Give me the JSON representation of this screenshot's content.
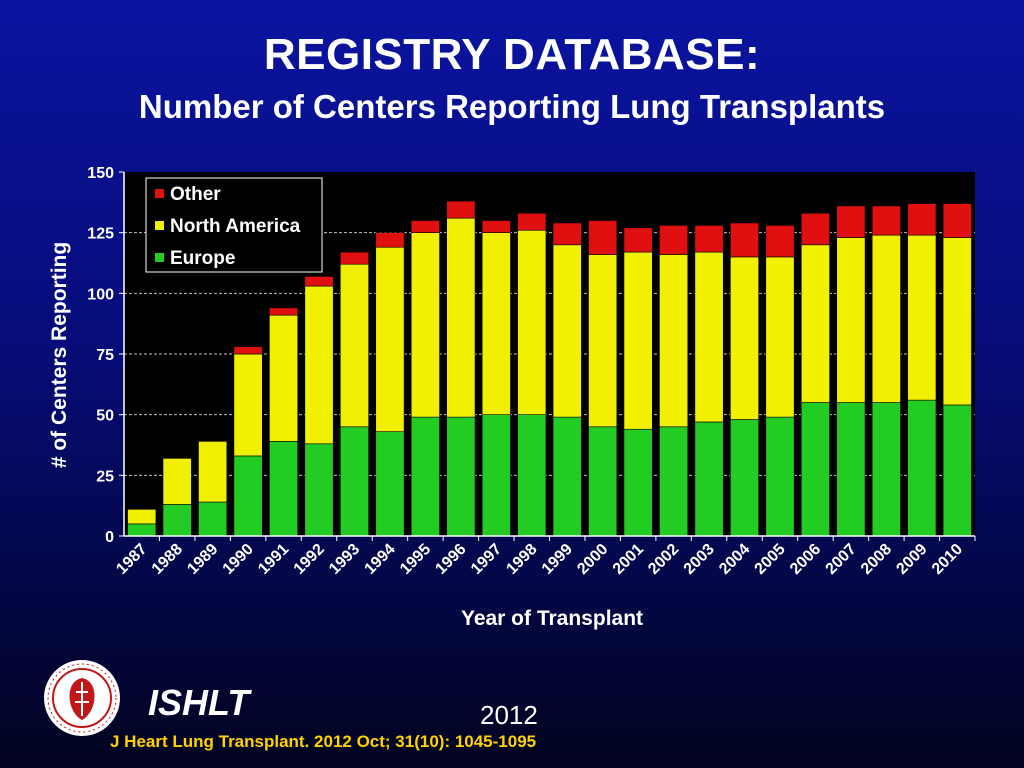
{
  "slide": {
    "title": "REGISTRY DATABASE:",
    "subtitle": "Number of Centers Reporting Lung Transplants"
  },
  "footer": {
    "org": "ISHLT",
    "year": "2012",
    "citation": "J Heart Lung Transplant.  2012 Oct; 31(10): 1045-1095",
    "logo_text": "INTERNATIONAL SOCIETY FOR HEART & LUNG TRANSPLANTATION"
  },
  "colors": {
    "europe": "#22cc22",
    "north_america": "#f0f000",
    "other": "#e01010",
    "plot_bg": "#000000",
    "citation": "#ffd200"
  },
  "chart_data": {
    "type": "bar",
    "stacked": true,
    "xlabel": "Year of Transplant",
    "ylabel": "# of Centers Reporting",
    "ylim": [
      0,
      150
    ],
    "yticks": [
      0,
      25,
      50,
      75,
      100,
      125,
      150
    ],
    "grid": "horizontal dashed",
    "legend_position": "top-left",
    "categories": [
      "1987",
      "1988",
      "1989",
      "1990",
      "1991",
      "1992",
      "1993",
      "1994",
      "1995",
      "1996",
      "1997",
      "1998",
      "1999",
      "2000",
      "2001",
      "2002",
      "2003",
      "2004",
      "2005",
      "2006",
      "2007",
      "2008",
      "2009",
      "2010"
    ],
    "series": [
      {
        "name": "Europe",
        "values": [
          5,
          13,
          14,
          33,
          39,
          38,
          45,
          43,
          49,
          49,
          50,
          50,
          49,
          45,
          44,
          45,
          47,
          48,
          49,
          55,
          55,
          55,
          56,
          54
        ]
      },
      {
        "name": "North America",
        "values": [
          6,
          19,
          25,
          42,
          52,
          65,
          67,
          76,
          76,
          82,
          75,
          76,
          71,
          71,
          73,
          71,
          70,
          67,
          66,
          65,
          68,
          69,
          68,
          69
        ]
      },
      {
        "name": "Other",
        "values": [
          0,
          0,
          0,
          3,
          3,
          4,
          5,
          6,
          5,
          7,
          5,
          7,
          9,
          14,
          10,
          12,
          11,
          14,
          13,
          13,
          13,
          12,
          13,
          14
        ]
      }
    ]
  }
}
